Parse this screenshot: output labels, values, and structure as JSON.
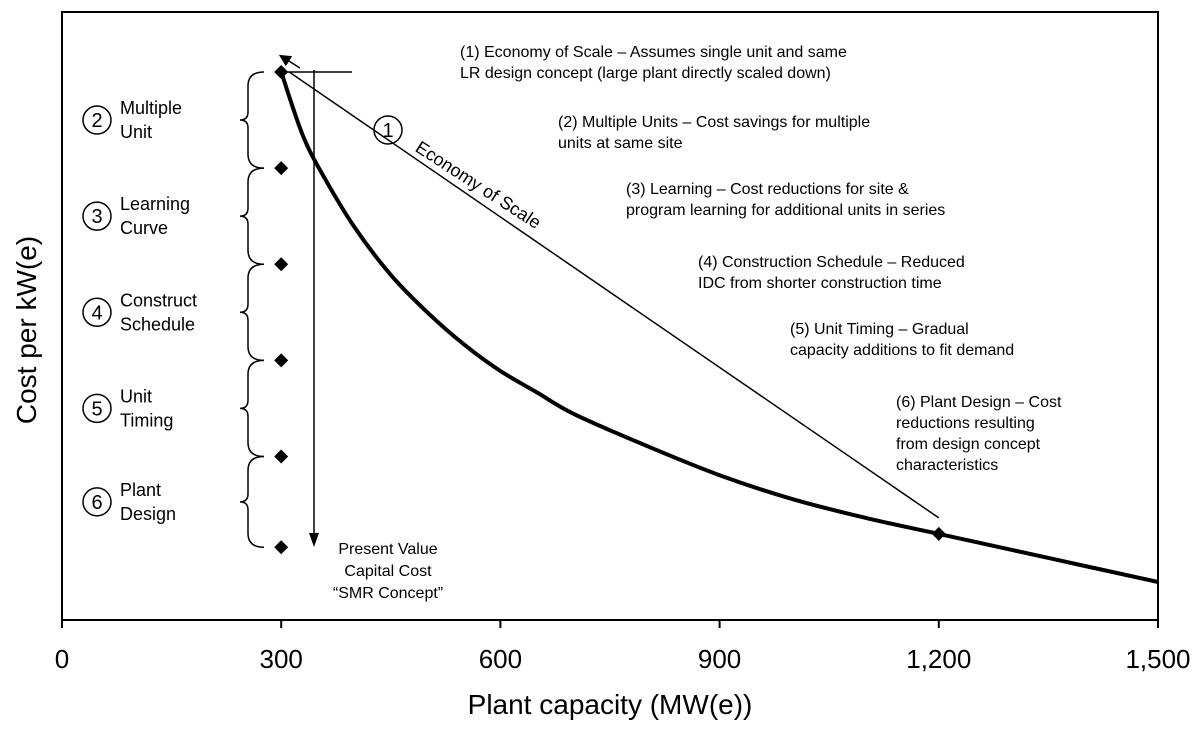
{
  "chart_data": {
    "type": "line",
    "title": "",
    "xlabel": "Plant capacity (MW(e))",
    "ylabel": "Cost per kW(e)",
    "xlim": [
      0,
      1500
    ],
    "ylim": [
      0,
      1
    ],
    "x_ticks": [
      0,
      300,
      600,
      900,
      1200,
      1500
    ],
    "x_tick_labels": [
      "0",
      "300",
      "600",
      "900",
      "1,200",
      "1,500"
    ],
    "grid": false,
    "series": [
      {
        "x": [
          300,
          330,
          360,
          400,
          450,
          500,
          550,
          600,
          650,
          700,
          800,
          900,
          1000,
          1100,
          1200,
          1300,
          1400,
          1500
        ],
        "y": [
          1.0,
          0.88,
          0.8,
          0.71,
          0.62,
          0.55,
          0.49,
          0.44,
          0.4,
          0.36,
          0.3,
          0.245,
          0.2,
          0.165,
          0.135,
          0.105,
          0.075,
          0.045
        ]
      }
    ],
    "economy_of_scale_line": {
      "x": [
        300,
        1200
      ],
      "y": [
        1.0,
        0.18
      ],
      "label": "Economy of Scale",
      "number": "1"
    },
    "factor_markers": {
      "x": 300,
      "y": [
        1.0,
        0.82,
        0.64,
        0.46,
        0.28,
        0.11
      ]
    },
    "large_plant_marker": {
      "x": 1200,
      "y": 0.135
    },
    "factors": [
      {
        "number": "2",
        "label_line1": "Multiple",
        "label_line2": "Unit"
      },
      {
        "number": "3",
        "label_line1": "Learning",
        "label_line2": "Curve"
      },
      {
        "number": "4",
        "label_line1": "Construct",
        "label_line2": "Schedule"
      },
      {
        "number": "5",
        "label_line1": "Unit",
        "label_line2": "Timing"
      },
      {
        "number": "6",
        "label_line1": "Plant",
        "label_line2": "Design"
      }
    ],
    "present_value_label": [
      "Present Value",
      "Capital Cost",
      "“SMR Concept”"
    ],
    "annotations": [
      {
        "lines": [
          "(1) Economy of Scale – Assumes single unit and same",
          "LR design concept (large plant directly scaled down)"
        ]
      },
      {
        "lines": [
          "(2) Multiple Units – Cost savings for multiple",
          "units at same site"
        ]
      },
      {
        "lines": [
          "(3) Learning – Cost reductions for site &",
          "program learning for additional units in series"
        ]
      },
      {
        "lines": [
          "(4) Construction Schedule – Reduced",
          "IDC from shorter construction time"
        ]
      },
      {
        "lines": [
          "(5) Unit Timing – Gradual",
          "capacity additions to fit demand"
        ]
      },
      {
        "lines": [
          "(6) Plant Design – Cost",
          "reductions resulting",
          "from design concept",
          "characteristics"
        ]
      }
    ]
  }
}
